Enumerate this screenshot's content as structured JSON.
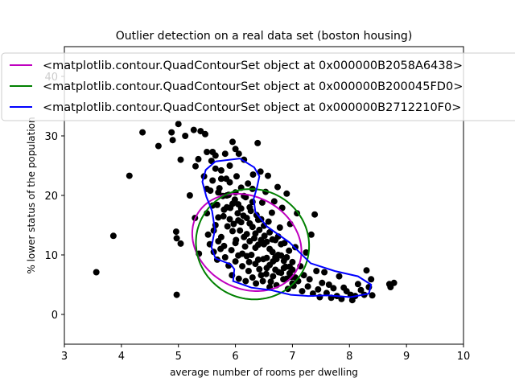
{
  "chart_data": {
    "type": "scatter",
    "title": "Outlier detection on a real data set (boston housing)",
    "xlabel": "average number of rooms per dwelling",
    "ylabel": "% lower status of the population",
    "xlim": [
      3,
      10
    ],
    "ylim": [
      -5,
      45
    ],
    "xticks": [
      "3",
      "4",
      "5",
      "6",
      "7",
      "8",
      "9",
      "10"
    ],
    "yticks": [
      "0",
      "10",
      "20",
      "30",
      "40"
    ],
    "grid": false,
    "legend_position": "top",
    "point_color": "#000000",
    "points": [
      [
        3.56,
        7.1
      ],
      [
        3.86,
        13.2
      ],
      [
        4.14,
        23.3
      ],
      [
        4.37,
        30.6
      ],
      [
        4.65,
        28.3
      ],
      [
        4.88,
        30.6
      ],
      [
        4.9,
        29.3
      ],
      [
        4.97,
        3.3
      ],
      [
        4.97,
        12.8
      ],
      [
        4.96,
        13.9
      ],
      [
        5.0,
        32.0
      ],
      [
        5.04,
        11.9
      ],
      [
        5.04,
        26.0
      ],
      [
        5.12,
        30.0
      ],
      [
        5.2,
        20.0
      ],
      [
        5.27,
        31.0
      ],
      [
        5.29,
        16.2
      ],
      [
        5.3,
        24.9
      ],
      [
        5.36,
        10.2
      ],
      [
        5.35,
        26.1
      ],
      [
        5.39,
        30.8
      ],
      [
        5.45,
        23.2
      ],
      [
        5.47,
        30.3
      ],
      [
        5.5,
        27.3
      ],
      [
        5.5,
        21.1
      ],
      [
        5.52,
        13.4
      ],
      [
        5.56,
        20.8
      ],
      [
        5.58,
        25.8
      ],
      [
        5.6,
        27.3
      ],
      [
        5.62,
        14.1
      ],
      [
        5.65,
        26.7
      ],
      [
        5.68,
        18.4
      ],
      [
        5.7,
        12.3
      ],
      [
        5.72,
        21.2
      ],
      [
        5.75,
        24.2
      ],
      [
        5.78,
        19.9
      ],
      [
        5.79,
        16.5
      ],
      [
        5.82,
        27.0
      ],
      [
        5.84,
        22.8
      ],
      [
        5.86,
        14.8
      ],
      [
        5.88,
        20.1
      ],
      [
        5.9,
        25.0
      ],
      [
        5.91,
        17.9
      ],
      [
        5.93,
        10.8
      ],
      [
        5.95,
        29.0
      ],
      [
        5.97,
        15.2
      ],
      [
        5.99,
        19.3
      ],
      [
        6.0,
        27.8
      ],
      [
        6.01,
        12.5
      ],
      [
        6.02,
        23.2
      ],
      [
        6.04,
        17.0
      ],
      [
        6.05,
        9.9
      ],
      [
        6.06,
        27.0
      ],
      [
        6.08,
        14.1
      ],
      [
        6.1,
        21.3
      ],
      [
        6.12,
        8.1
      ],
      [
        6.14,
        16.6
      ],
      [
        6.15,
        26.0
      ],
      [
        6.17,
        11.4
      ],
      [
        6.18,
        19.7
      ],
      [
        6.2,
        13.5
      ],
      [
        6.22,
        22.0
      ],
      [
        6.23,
        7.3
      ],
      [
        6.25,
        15.3
      ],
      [
        6.27,
        17.4
      ],
      [
        6.28,
        10.0
      ],
      [
        6.3,
        21.1
      ],
      [
        6.31,
        23.5
      ],
      [
        6.33,
        12.8
      ],
      [
        6.35,
        8.5
      ],
      [
        6.37,
        16.7
      ],
      [
        6.39,
        28.8
      ],
      [
        6.4,
        11.7
      ],
      [
        6.42,
        14.2
      ],
      [
        6.44,
        24.0
      ],
      [
        6.45,
        6.6
      ],
      [
        6.47,
        18.8
      ],
      [
        6.49,
        9.3
      ],
      [
        6.51,
        13.2
      ],
      [
        6.53,
        20.6
      ],
      [
        6.55,
        7.8
      ],
      [
        6.57,
        23.3
      ],
      [
        6.58,
        15.6
      ],
      [
        6.6,
        11.0
      ],
      [
        6.62,
        5.5
      ],
      [
        6.64,
        17.1
      ],
      [
        6.66,
        8.9
      ],
      [
        6.68,
        19.0
      ],
      [
        6.7,
        12.5
      ],
      [
        6.72,
        4.9
      ],
      [
        6.74,
        21.4
      ],
      [
        6.76,
        7.1
      ],
      [
        6.78,
        14.6
      ],
      [
        6.8,
        9.9
      ],
      [
        6.82,
        17.9
      ],
      [
        6.84,
        5.9
      ],
      [
        6.86,
        12.0
      ],
      [
        6.88,
        8.0
      ],
      [
        6.9,
        20.3
      ],
      [
        6.92,
        4.3
      ],
      [
        6.94,
        10.7
      ],
      [
        6.96,
        15.2
      ],
      [
        6.98,
        6.3
      ],
      [
        7.0,
        8.8
      ],
      [
        7.02,
        4.8
      ],
      [
        7.05,
        11.3
      ],
      [
        7.08,
        17.0
      ],
      [
        7.1,
        5.6
      ],
      [
        7.14,
        8.1
      ],
      [
        7.17,
        3.9
      ],
      [
        7.2,
        6.6
      ],
      [
        7.24,
        10.4
      ],
      [
        7.27,
        4.7
      ],
      [
        7.3,
        5.9
      ],
      [
        7.33,
        13.4
      ],
      [
        7.36,
        3.5
      ],
      [
        7.39,
        16.8
      ],
      [
        7.42,
        7.3
      ],
      [
        7.45,
        4.2
      ],
      [
        7.48,
        2.9
      ],
      [
        7.52,
        5.3
      ],
      [
        7.56,
        7.1
      ],
      [
        7.6,
        3.6
      ],
      [
        7.64,
        5.0
      ],
      [
        7.68,
        2.8
      ],
      [
        7.72,
        4.4
      ],
      [
        7.78,
        3.1
      ],
      [
        7.82,
        6.4
      ],
      [
        7.86,
        2.6
      ],
      [
        7.9,
        4.5
      ],
      [
        7.95,
        3.9
      ],
      [
        8.02,
        3.3
      ],
      [
        8.05,
        2.4
      ],
      [
        8.1,
        3.1
      ],
      [
        8.15,
        5.1
      ],
      [
        8.2,
        4.1
      ],
      [
        8.26,
        3.3
      ],
      [
        8.3,
        7.4
      ],
      [
        8.34,
        4.6
      ],
      [
        8.38,
        5.9
      ],
      [
        8.4,
        3.2
      ],
      [
        8.7,
        5.1
      ],
      [
        8.72,
        4.6
      ],
      [
        8.78,
        5.3
      ],
      [
        5.5,
        17.0
      ],
      [
        5.6,
        18.3
      ],
      [
        5.65,
        15.0
      ],
      [
        5.7,
        16.3
      ],
      [
        5.75,
        13.0
      ],
      [
        5.8,
        11.5
      ],
      [
        5.85,
        18.0
      ],
      [
        5.9,
        16.0
      ],
      [
        5.95,
        14.0
      ],
      [
        6.0,
        12.0
      ],
      [
        6.05,
        18.5
      ],
      [
        6.1,
        15.5
      ],
      [
        6.15,
        13.0
      ],
      [
        6.2,
        9.8
      ],
      [
        6.25,
        18.0
      ],
      [
        6.3,
        14.7
      ],
      [
        6.35,
        11.2
      ],
      [
        6.4,
        9.2
      ],
      [
        6.45,
        16.0
      ],
      [
        6.5,
        11.8
      ],
      [
        6.55,
        9.5
      ],
      [
        6.6,
        13.8
      ],
      [
        6.65,
        10.5
      ],
      [
        6.7,
        7.5
      ],
      [
        6.75,
        10.0
      ],
      [
        6.8,
        7.0
      ],
      [
        6.85,
        9.0
      ],
      [
        6.9,
        6.0
      ],
      [
        6.95,
        8.0
      ],
      [
        7.0,
        5.2
      ],
      [
        5.6,
        22.5
      ],
      [
        5.65,
        24.5
      ],
      [
        5.7,
        20.5
      ],
      [
        5.75,
        22.8
      ],
      [
        5.8,
        17.6
      ],
      [
        5.85,
        20.0
      ],
      [
        5.9,
        22.2
      ],
      [
        5.95,
        18.6
      ],
      [
        6.0,
        20.5
      ],
      [
        6.05,
        15.8
      ],
      [
        6.1,
        17.8
      ],
      [
        6.15,
        19.9
      ],
      [
        6.2,
        16.2
      ],
      [
        6.25,
        12.3
      ],
      [
        6.3,
        18.9
      ],
      [
        6.35,
        13.6
      ],
      [
        6.4,
        15.9
      ],
      [
        6.45,
        12.5
      ],
      [
        6.5,
        14.9
      ],
      [
        6.55,
        12.2
      ],
      [
        6.6,
        8.3
      ],
      [
        6.65,
        12.6
      ],
      [
        6.7,
        9.6
      ],
      [
        6.75,
        13.1
      ],
      [
        6.8,
        11.8
      ],
      [
        6.85,
        7.8
      ],
      [
        6.9,
        9.6
      ],
      [
        6.95,
        6.9
      ],
      [
        7.0,
        7.5
      ],
      [
        7.05,
        6.2
      ],
      [
        5.55,
        11.8
      ],
      [
        5.62,
        10.5
      ],
      [
        5.68,
        9.2
      ],
      [
        5.74,
        11.0
      ],
      [
        5.82,
        9.6
      ],
      [
        5.88,
        8.2
      ],
      [
        5.94,
        6.6
      ],
      [
        6.0,
        8.9
      ],
      [
        6.06,
        6.0
      ],
      [
        6.12,
        10.2
      ],
      [
        6.18,
        5.6
      ],
      [
        6.24,
        8.8
      ],
      [
        6.3,
        6.2
      ],
      [
        6.36,
        5.2
      ],
      [
        6.42,
        7.6
      ],
      [
        6.48,
        5.6
      ],
      [
        6.54,
        6.8
      ],
      [
        6.6,
        4.6
      ],
      [
        6.66,
        6.4
      ],
      [
        6.72,
        9.3
      ]
    ],
    "series": [
      {
        "name": "<matplotlib.contour.QuadContourSet object at 0x000000B2058A6438>",
        "color": "#bf00bf",
        "kind": "ellipse",
        "center": [
          6.2,
          12.1
        ],
        "semi_axes": [
          1.0,
          7.7
        ],
        "rotation_deg": 29
      },
      {
        "name": "<matplotlib.contour.QuadContourSet object at 0x000000B200045FD0>",
        "color": "#008000",
        "kind": "ellipse",
        "center": [
          6.3,
          11.8
        ],
        "semi_axes": [
          1.0,
          9.2
        ],
        "rotation_deg": 26
      },
      {
        "name": "<matplotlib.contour.QuadContourSet object at 0x000000B2712210F0>",
        "color": "#0000ff",
        "kind": "path",
        "points": [
          [
            5.65,
            25.7
          ],
          [
            6.08,
            26.2
          ],
          [
            6.33,
            24.7
          ],
          [
            6.42,
            23.2
          ],
          [
            6.38,
            21.4
          ],
          [
            6.32,
            19.4
          ],
          [
            6.35,
            17.2
          ],
          [
            6.55,
            14.8
          ],
          [
            6.95,
            12.1
          ],
          [
            7.32,
            8.6
          ],
          [
            7.74,
            7.3
          ],
          [
            8.15,
            6.4
          ],
          [
            8.38,
            5.0
          ],
          [
            8.34,
            3.5
          ],
          [
            8.02,
            2.9
          ],
          [
            7.62,
            3.2
          ],
          [
            7.28,
            3.1
          ],
          [
            6.97,
            3.3
          ],
          [
            6.62,
            4.1
          ],
          [
            6.28,
            4.5
          ],
          [
            5.96,
            5.6
          ],
          [
            5.98,
            7.6
          ],
          [
            5.92,
            8.4
          ],
          [
            5.65,
            9.4
          ],
          [
            5.58,
            11.3
          ],
          [
            5.64,
            14.3
          ],
          [
            5.59,
            17.4
          ],
          [
            5.49,
            19.8
          ],
          [
            5.42,
            22.3
          ],
          [
            5.48,
            24.3
          ],
          [
            5.65,
            25.7
          ]
        ]
      }
    ]
  }
}
